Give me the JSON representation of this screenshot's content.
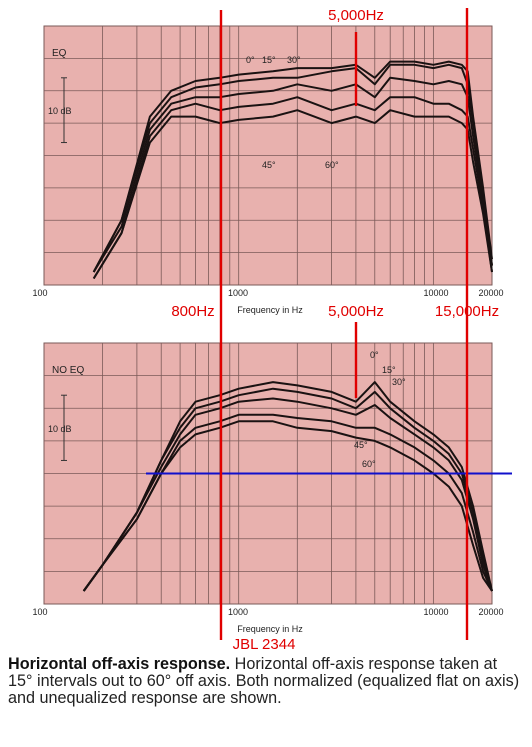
{
  "chart_data": [
    {
      "type": "line",
      "title": "",
      "corner_label": "EQ",
      "xlabel": "Frequency in Hz",
      "ylabel": "",
      "scale_marker": "10 dB",
      "x_scale": "log",
      "xlim": [
        100,
        20000
      ],
      "x_ticks_labeled": [
        "100",
        "1000",
        "10000",
        "20000"
      ],
      "grid": true,
      "angle_labels": [
        "0°",
        "15°",
        "30°",
        "45°",
        "60°"
      ],
      "series": [
        {
          "name": "0°",
          "x": [
            180,
            250,
            350,
            450,
            600,
            800,
            1000,
            1500,
            2000,
            3000,
            4000,
            5000,
            6000,
            8000,
            10000,
            12000,
            14000,
            15000,
            16000,
            18000,
            20000
          ],
          "y": [
            -30,
            -22,
            -6,
            -2,
            -0.5,
            0,
            0.5,
            1,
            1.5,
            1.5,
            2,
            0,
            2.5,
            2.5,
            2,
            2.5,
            2,
            1,
            -6,
            -17,
            -28
          ]
        },
        {
          "name": "15°",
          "x": [
            180,
            250,
            350,
            450,
            600,
            800,
            1000,
            1500,
            2000,
            3000,
            4000,
            5000,
            6000,
            8000,
            10000,
            12000,
            14000,
            15000,
            16000,
            18000,
            20000
          ],
          "y": [
            -30,
            -22,
            -7,
            -3,
            -1.5,
            -1,
            -0.5,
            0,
            0,
            1,
            1.5,
            -1,
            2,
            2,
            1.5,
            2,
            1.5,
            -1,
            -7,
            -18,
            -29
          ]
        },
        {
          "name": "30°",
          "x": [
            180,
            250,
            350,
            450,
            600,
            800,
            1000,
            1500,
            2000,
            3000,
            4000,
            5000,
            6000,
            8000,
            10000,
            12000,
            14000,
            15000,
            16000,
            18000,
            20000
          ],
          "y": [
            -30,
            -23,
            -8,
            -4,
            -3,
            -3,
            -2.5,
            -2,
            -1,
            -2,
            -1,
            -3,
            0,
            -0.5,
            -1,
            -0.5,
            -1,
            -3,
            -9,
            -19,
            -29
          ]
        },
        {
          "name": "45°",
          "x": [
            180,
            250,
            350,
            450,
            600,
            800,
            1000,
            1500,
            2000,
            3000,
            4000,
            5000,
            6000,
            8000,
            10000,
            12000,
            14000,
            15000,
            16000,
            18000,
            20000
          ],
          "y": [
            -31,
            -24,
            -9,
            -5,
            -4,
            -5,
            -4.5,
            -4,
            -3,
            -5,
            -4,
            -5,
            -3,
            -3,
            -4,
            -4,
            -5,
            -6,
            -11,
            -20,
            -30
          ]
        },
        {
          "name": "60°",
          "x": [
            180,
            250,
            350,
            450,
            600,
            800,
            1000,
            1500,
            2000,
            3000,
            4000,
            5000,
            6000,
            8000,
            10000,
            12000,
            14000,
            15000,
            16000,
            18000,
            20000
          ],
          "y": [
            -31,
            -24,
            -10,
            -6,
            -6,
            -7,
            -6.5,
            -6,
            -5,
            -7,
            -6,
            -7,
            -5,
            -6,
            -6,
            -6,
            -7,
            -8,
            -13,
            -21,
            -30
          ]
        }
      ],
      "annotations": [
        {
          "text": "800Hz",
          "x": 800
        },
        {
          "text": "5,000Hz",
          "x": 5000
        },
        {
          "text": "15,000Hz",
          "x": 15000
        }
      ]
    },
    {
      "type": "line",
      "title": "",
      "corner_label": "NO EQ",
      "xlabel": "Frequency in Hz",
      "ylabel": "",
      "scale_marker": "10 dB",
      "x_scale": "log",
      "xlim": [
        100,
        20000
      ],
      "x_ticks_labeled": [
        "100",
        "1000",
        "10000",
        "20000"
      ],
      "grid": true,
      "angle_labels": [
        "0°",
        "15°",
        "30°",
        "45°",
        "60°"
      ],
      "reference_line_db": -12,
      "series": [
        {
          "name": "0°",
          "x": [
            160,
            200,
            300,
            400,
            500,
            600,
            800,
            1000,
            1500,
            2000,
            3000,
            4000,
            5000,
            6000,
            8000,
            10000,
            12000,
            14000,
            16000,
            18000,
            20000
          ],
          "y": [
            -30,
            -26,
            -18,
            -10,
            -4,
            -1,
            0,
            1,
            2,
            1.5,
            0.5,
            -1,
            2,
            -1,
            -4,
            -6,
            -8,
            -11,
            -17,
            -24,
            -30
          ]
        },
        {
          "name": "15°",
          "x": [
            160,
            200,
            300,
            400,
            500,
            600,
            800,
            1000,
            1500,
            2000,
            3000,
            4000,
            5000,
            6000,
            8000,
            10000,
            12000,
            14000,
            16000,
            18000,
            20000
          ],
          "y": [
            -30,
            -26,
            -18,
            -10,
            -5,
            -2,
            -1,
            0,
            1,
            0.5,
            -0.5,
            -2,
            0.5,
            -2,
            -5,
            -7,
            -9,
            -12,
            -18,
            -25,
            -30
          ]
        },
        {
          "name": "30°",
          "x": [
            160,
            200,
            300,
            400,
            500,
            600,
            800,
            1000,
            1500,
            2000,
            3000,
            4000,
            5000,
            6000,
            8000,
            10000,
            12000,
            14000,
            16000,
            18000,
            20000
          ],
          "y": [
            -30,
            -26,
            -18,
            -11,
            -6,
            -3,
            -2,
            -1,
            -0.5,
            -1,
            -2,
            -3,
            -1.5,
            -3.5,
            -6,
            -8,
            -10,
            -13,
            -19,
            -26,
            -30
          ]
        },
        {
          "name": "45°",
          "x": [
            160,
            200,
            300,
            400,
            500,
            600,
            800,
            1000,
            1500,
            2000,
            3000,
            4000,
            5000,
            6000,
            8000,
            10000,
            12000,
            14000,
            16000,
            18000,
            20000
          ],
          "y": [
            -30,
            -26,
            -19,
            -12,
            -7,
            -5,
            -4,
            -3,
            -3,
            -3.5,
            -4,
            -5,
            -5,
            -6,
            -8,
            -10,
            -12,
            -15,
            -21,
            -27,
            -30
          ]
        },
        {
          "name": "60°",
          "x": [
            160,
            200,
            300,
            400,
            500,
            600,
            800,
            1000,
            1500,
            2000,
            3000,
            4000,
            5000,
            6000,
            8000,
            10000,
            12000,
            14000,
            16000,
            18000,
            20000
          ],
          "y": [
            -30,
            -26,
            -19,
            -12,
            -8,
            -6,
            -5,
            -4,
            -4,
            -5,
            -5.5,
            -6.5,
            -7,
            -8,
            -10,
            -12,
            -14,
            -17,
            -23,
            -28,
            -30
          ]
        }
      ],
      "annotations": [
        {
          "text": "5,000Hz",
          "x": 5000
        },
        {
          "text": "JBL 2344",
          "x": 800
        }
      ]
    }
  ],
  "caption": {
    "bold": "Horizontal off-axis response.",
    "text": " Horizontal off-axis response taken at 15° intervals out to 60° off axis. Both normalized (equalized flat on axis) and unequalized response are shown."
  },
  "colors": {
    "plot_background": "#e8b1ae",
    "grid": "#7a5a58",
    "curve": "#1a1212",
    "marker_red": "#e00000",
    "reference_blue": "#1010cc"
  }
}
